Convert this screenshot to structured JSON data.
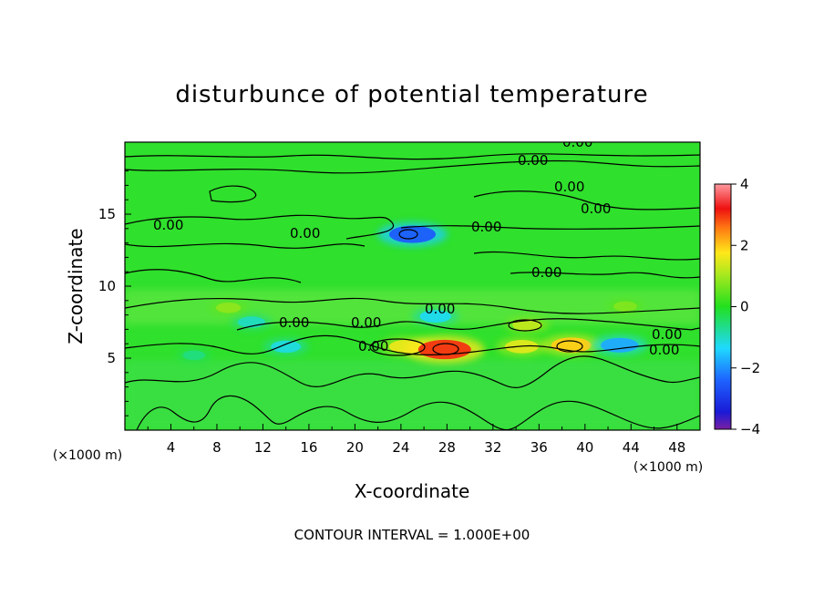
{
  "chart_data": {
    "type": "heatmap",
    "title": "disturbunce of potential temperature",
    "xlabel": "X-coordinate",
    "ylabel": "Z-coordinate",
    "x_unit": "(×1000 m)",
    "y_unit": "(×1000 m)",
    "xlim": [
      0,
      50
    ],
    "ylim": [
      0,
      20
    ],
    "x_ticks": [
      "4",
      "8",
      "12",
      "16",
      "20",
      "24",
      "28",
      "32",
      "36",
      "40",
      "44",
      "48"
    ],
    "y_ticks": [
      "5",
      "10",
      "15"
    ],
    "colorbar": {
      "range": [
        -4,
        4
      ],
      "ticks": [
        "4",
        "2",
        "0",
        "−2",
        "−4"
      ]
    },
    "contour_labels": [
      "0.00",
      "0.00",
      "0.00",
      "0.00",
      "0.00",
      "0.00",
      "0.00",
      "0.00",
      "0.00",
      "0.00",
      "0.00",
      "0.00",
      "0.00",
      "0.00"
    ],
    "anomalies": [
      {
        "x": 24.5,
        "z": 5.8,
        "value": 1.6
      },
      {
        "x": 27.8,
        "z": 5.6,
        "value": 3.0
      },
      {
        "x": 34.5,
        "z": 5.8,
        "value": 1.5
      },
      {
        "x": 38.8,
        "z": 5.9,
        "value": 2.0
      },
      {
        "x": 35.0,
        "z": 7.3,
        "value": 1.2
      },
      {
        "x": 43.0,
        "z": 5.9,
        "value": -1.8
      },
      {
        "x": 27.0,
        "z": 7.9,
        "value": -1.3
      },
      {
        "x": 11.0,
        "z": 7.5,
        "value": -1.0
      },
      {
        "x": 14.0,
        "z": 5.8,
        "value": -1.2
      },
      {
        "x": 25.0,
        "z": 13.6,
        "value": -2.5
      },
      {
        "x": 6.0,
        "z": 5.2,
        "value": -0.6
      },
      {
        "x": 9.0,
        "z": 8.5,
        "value": 0.8
      },
      {
        "x": 43.5,
        "z": 8.6,
        "value": 0.7
      }
    ],
    "footer": "CONTOUR INTERVAL = 1.000E+00"
  }
}
